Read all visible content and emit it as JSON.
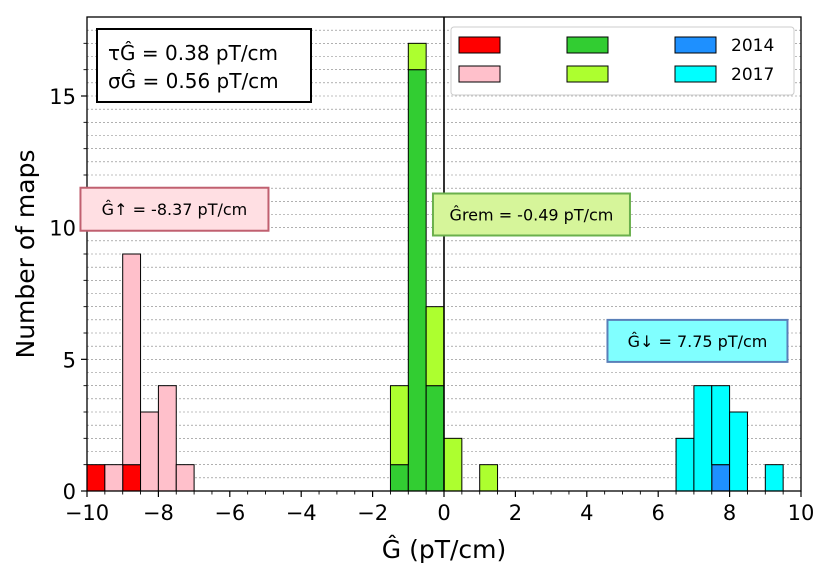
{
  "chart_data": {
    "type": "bar",
    "subtype": "stacked-histogram",
    "xlabel": "Ĝ (pT/cm)",
    "ylabel": "Number of maps",
    "xlim": [
      -10,
      10
    ],
    "ylim": [
      0,
      18
    ],
    "xticks": [
      "−10",
      "−8",
      "−6",
      "−4",
      "−2",
      "0",
      "2",
      "4",
      "6",
      "8",
      "10"
    ],
    "yticks": [
      "0",
      "5",
      "10",
      "15"
    ],
    "bin_width": 0.5,
    "grid": "horizontal minor dashed",
    "vline_x": 0,
    "series": [
      {
        "name": "",
        "group": "up",
        "color": "#ff0000",
        "bins": [
          {
            "x0": -10,
            "count": 1
          },
          {
            "x0": -9,
            "count": 1
          }
        ]
      },
      {
        "name": "",
        "group": "up",
        "color": "#ffc0cb",
        "bins": [
          {
            "x0": -9.5,
            "count": 1
          },
          {
            "x0": -9,
            "count": 8
          },
          {
            "x0": -8.5,
            "count": 3
          },
          {
            "x0": -8,
            "count": 4
          },
          {
            "x0": -7.5,
            "count": 1
          }
        ]
      },
      {
        "name": "",
        "group": "rem",
        "color": "#32cd32",
        "bins": [
          {
            "x0": -1.5,
            "count": 1
          },
          {
            "x0": -1,
            "count": 16
          },
          {
            "x0": -0.5,
            "count": 4
          }
        ]
      },
      {
        "name": "",
        "group": "rem",
        "color": "#adff2f",
        "bins": [
          {
            "x0": -1.5,
            "count": 3
          },
          {
            "x0": -1,
            "count": 1
          },
          {
            "x0": -0.5,
            "count": 3
          },
          {
            "x0": 0,
            "count": 2
          },
          {
            "x0": 1,
            "count": 1
          }
        ]
      },
      {
        "name": "2014",
        "group": "down",
        "color": "#1e90ff",
        "bins": [
          {
            "x0": 7.5,
            "count": 1
          }
        ]
      },
      {
        "name": "2017",
        "group": "down",
        "color": "#00ffff",
        "bins": [
          {
            "x0": 6.5,
            "count": 2
          },
          {
            "x0": 7,
            "count": 4
          },
          {
            "x0": 7.5,
            "count": 3
          },
          {
            "x0": 8,
            "count": 3
          },
          {
            "x0": 9,
            "count": 1
          }
        ]
      }
    ],
    "legend": {
      "position": "top-right",
      "entries": [
        {
          "label": "",
          "color": "#ff0000"
        },
        {
          "label": "",
          "color": "#ffc0cb"
        },
        {
          "label": "",
          "color": "#32cd32"
        },
        {
          "label": "",
          "color": "#adff2f"
        },
        {
          "label": "2014",
          "color": "#1e90ff"
        },
        {
          "label": "2017",
          "color": "#00ffff"
        }
      ]
    },
    "annotations": [
      {
        "id": "up",
        "text": "Ĝ↑ = -8.37 pT/cm",
        "x": -7.55,
        "y": 10.7,
        "face": "#ffdfe3",
        "edge": "#c06070"
      },
      {
        "id": "rem",
        "text": "Ĝrem = -0.49 pT/cm",
        "x": 2.45,
        "y": 10.5,
        "face": "#d6f59a",
        "edge": "#6ab04c"
      },
      {
        "id": "down",
        "text": "Ĝ↓ = 7.75 pT/cm",
        "x": 7.1,
        "y": 5.7,
        "face": "#80ffff",
        "edge": "#5a7fb8"
      }
    ],
    "stats_box": {
      "lines": [
        "τĜ = 0.38 pT/cm",
        "σĜ = 0.56 pT/cm"
      ],
      "position": "top-left"
    }
  }
}
